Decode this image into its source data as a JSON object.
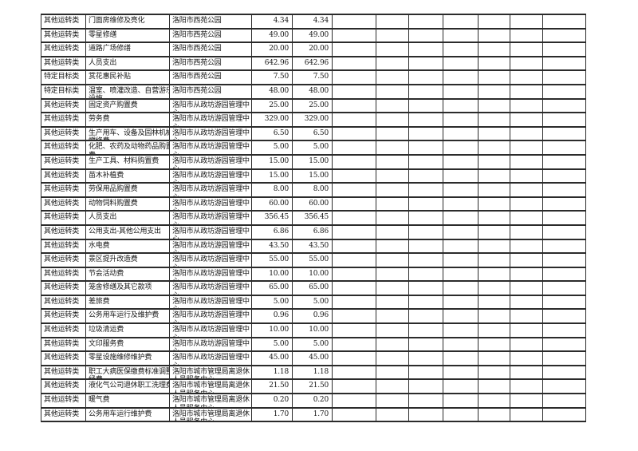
{
  "page": {
    "background_color": "#ffffff",
    "text_color": "#161616",
    "border_color": "#2b2b2b"
  },
  "table": {
    "visible_columns": {
      "category": "",
      "item": "",
      "organization": "",
      "amount_1": "",
      "amount_2": "",
      "empty_column_count": 7
    },
    "organizations": {
      "A": [
        "洛阳市西苑公园"
      ],
      "B": [
        "洛阳市从政坊游园管理中",
        "心"
      ],
      "C": [
        "洛阳市城市管理局离退休",
        "人员服务中心"
      ]
    },
    "rows": [
      {
        "category": "其他运转类",
        "item_lines": [
          "门面房维修及亮化"
        ],
        "org": "A",
        "amount1": "4.34",
        "amount2": "4.34"
      },
      {
        "category": "其他运转类",
        "item_lines": [
          "零星修缮"
        ],
        "org": "A",
        "amount1": "49.00",
        "amount2": "49.00"
      },
      {
        "category": "其他运转类",
        "item_lines": [
          "道路广场修缮"
        ],
        "org": "A",
        "amount1": "20.00",
        "amount2": "20.00"
      },
      {
        "category": "其他运转类",
        "item_lines": [
          "人员支出"
        ],
        "org": "A",
        "amount1": "642.96",
        "amount2": "642.96"
      },
      {
        "category": "特定目标类",
        "item_lines": [
          "赏花惠民补贴"
        ],
        "org": "A",
        "amount1": "7.50",
        "amount2": "7.50"
      },
      {
        "category": "特定目标类",
        "item_lines": [
          "温室、喷灌改造、自营游乐",
          "设施"
        ],
        "org": "A",
        "amount1": "48.00",
        "amount2": "48.00"
      },
      {
        "category": "其他运转类",
        "item_lines": [
          "固定资产购置费"
        ],
        "org": "B",
        "amount1": "25.00",
        "amount2": "25.00"
      },
      {
        "category": "其他运转类",
        "item_lines": [
          "劳务费"
        ],
        "org": "B",
        "amount1": "329.00",
        "amount2": "329.00"
      },
      {
        "category": "其他运转类",
        "item_lines": [
          "生产用车、设备及园林机械",
          "燃修费"
        ],
        "org": "B",
        "amount1": "6.50",
        "amount2": "6.50"
      },
      {
        "category": "其他运转类",
        "item_lines": [
          "化肥、农药及动物药品购置",
          "费"
        ],
        "org": "B",
        "amount1": "5.00",
        "amount2": "5.00"
      },
      {
        "category": "其他运转类",
        "item_lines": [
          "生产工具、材料购置费"
        ],
        "org": "B",
        "amount1": "15.00",
        "amount2": "15.00"
      },
      {
        "category": "其他运转类",
        "item_lines": [
          "苗木补植费"
        ],
        "org": "B",
        "amount1": "15.00",
        "amount2": "15.00"
      },
      {
        "category": "其他运转类",
        "item_lines": [
          "劳保用品购置费"
        ],
        "org": "B",
        "amount1": "8.00",
        "amount2": "8.00"
      },
      {
        "category": "其他运转类",
        "item_lines": [
          "动物饲料购置费"
        ],
        "org": "B",
        "amount1": "60.00",
        "amount2": "60.00"
      },
      {
        "category": "其他运转类",
        "item_lines": [
          "人员支出"
        ],
        "org": "B",
        "amount1": "356.45",
        "amount2": "356.45"
      },
      {
        "category": "其他运转类",
        "item_lines": [
          "公用支出-其他公用支出"
        ],
        "org": "B",
        "amount1": "6.86",
        "amount2": "6.86"
      },
      {
        "category": "其他运转类",
        "item_lines": [
          "水电费"
        ],
        "org": "B",
        "amount1": "43.50",
        "amount2": "43.50"
      },
      {
        "category": "其他运转类",
        "item_lines": [
          "景区提升改造费"
        ],
        "org": "B",
        "amount1": "55.00",
        "amount2": "55.00"
      },
      {
        "category": "其他运转类",
        "item_lines": [
          "节会活动费"
        ],
        "org": "B",
        "amount1": "10.00",
        "amount2": "10.00"
      },
      {
        "category": "其他运转类",
        "item_lines": [
          "笼舍修缮及其它款项"
        ],
        "org": "B",
        "amount1": "65.00",
        "amount2": "65.00"
      },
      {
        "category": "其他运转类",
        "item_lines": [
          "差旅费"
        ],
        "org": "B",
        "amount1": "5.00",
        "amount2": "5.00"
      },
      {
        "category": "其他运转类",
        "item_lines": [
          "公务用车运行及维护费"
        ],
        "org": "B",
        "amount1": "0.96",
        "amount2": "0.96"
      },
      {
        "category": "其他运转类",
        "item_lines": [
          "垃圾清运费"
        ],
        "org": "B",
        "amount1": "10.00",
        "amount2": "10.00"
      },
      {
        "category": "其他运转类",
        "item_lines": [
          "文印服务费"
        ],
        "org": "B",
        "amount1": "5.00",
        "amount2": "5.00"
      },
      {
        "category": "其他运转类",
        "item_lines": [
          "零星设施维修维护费"
        ],
        "org": "B",
        "amount1": "45.00",
        "amount2": "45.00"
      },
      {
        "category": "其他运转类",
        "item_lines": [
          "职工大病医保缴费标准调整",
          "经费"
        ],
        "org": "C",
        "amount1": "1.18",
        "amount2": "1.18"
      },
      {
        "category": "其他运转类",
        "item_lines": [
          "液化气公司退休职工洗理费"
        ],
        "org": "C",
        "amount1": "21.50",
        "amount2": "21.50"
      },
      {
        "category": "其他运转类",
        "item_lines": [
          "暖气费"
        ],
        "org": "C",
        "amount1": "0.20",
        "amount2": "0.20"
      },
      {
        "category": "其他运转类",
        "item_lines": [
          "公务用车运行维护费"
        ],
        "org": "C",
        "amount1": "1.70",
        "amount2": "1.70"
      }
    ]
  }
}
